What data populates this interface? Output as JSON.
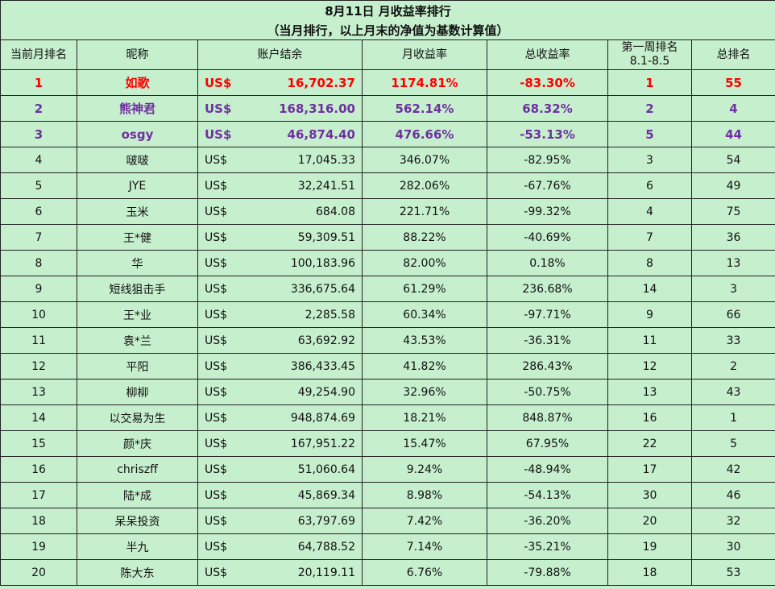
{
  "title_line1": "8月11日 月收益率排行",
  "title_line2": "（当月排行，以上月末的净值为基数计算值）",
  "headers": {
    "rank": "当前月排名",
    "nick": "昵称",
    "balance": "账户结余",
    "monthly": "月收益率",
    "total": "总收益率",
    "week1_line1": "第一周排名",
    "week1_line2": "8.1-8.5",
    "overall": "总排名"
  },
  "colors": {
    "background": "#c6efce",
    "rank1": "#ff0000",
    "rank2_3": "#7030a0",
    "border": "#222222"
  },
  "rows": [
    {
      "rank": "1",
      "nick": "如歌",
      "cur": "US$",
      "balance": "16,702.37",
      "monthly": "1174.81%",
      "total": "-83.30%",
      "week1": "1",
      "overall": "55"
    },
    {
      "rank": "2",
      "nick": "熊神君",
      "cur": "US$",
      "balance": "168,316.00",
      "monthly": "562.14%",
      "total": "68.32%",
      "week1": "2",
      "overall": "4"
    },
    {
      "rank": "3",
      "nick": "osgy",
      "cur": "US$",
      "balance": "46,874.40",
      "monthly": "476.66%",
      "total": "-53.13%",
      "week1": "5",
      "overall": "44"
    },
    {
      "rank": "4",
      "nick": "啵啵",
      "cur": "US$",
      "balance": "17,045.33",
      "monthly": "346.07%",
      "total": "-82.95%",
      "week1": "3",
      "overall": "54"
    },
    {
      "rank": "5",
      "nick": "JYE",
      "cur": "US$",
      "balance": "32,241.51",
      "monthly": "282.06%",
      "total": "-67.76%",
      "week1": "6",
      "overall": "49"
    },
    {
      "rank": "6",
      "nick": "玉米",
      "cur": "US$",
      "balance": "684.08",
      "monthly": "221.71%",
      "total": "-99.32%",
      "week1": "4",
      "overall": "75"
    },
    {
      "rank": "7",
      "nick": "王*健",
      "cur": "US$",
      "balance": "59,309.51",
      "monthly": "88.22%",
      "total": "-40.69%",
      "week1": "7",
      "overall": "36"
    },
    {
      "rank": "8",
      "nick": "华",
      "cur": "US$",
      "balance": "100,183.96",
      "monthly": "82.00%",
      "total": "0.18%",
      "week1": "8",
      "overall": "13"
    },
    {
      "rank": "9",
      "nick": "短线狙击手",
      "cur": "US$",
      "balance": "336,675.64",
      "monthly": "61.29%",
      "total": "236.68%",
      "week1": "14",
      "overall": "3"
    },
    {
      "rank": "10",
      "nick": "王*业",
      "cur": "US$",
      "balance": "2,285.58",
      "monthly": "60.34%",
      "total": "-97.71%",
      "week1": "9",
      "overall": "66"
    },
    {
      "rank": "11",
      "nick": "袁*兰",
      "cur": "US$",
      "balance": "63,692.92",
      "monthly": "43.53%",
      "total": "-36.31%",
      "week1": "11",
      "overall": "33"
    },
    {
      "rank": "12",
      "nick": "平阳",
      "cur": "US$",
      "balance": "386,433.45",
      "monthly": "41.82%",
      "total": "286.43%",
      "week1": "12",
      "overall": "2"
    },
    {
      "rank": "13",
      "nick": "柳柳",
      "cur": "US$",
      "balance": "49,254.90",
      "monthly": "32.96%",
      "total": "-50.75%",
      "week1": "13",
      "overall": "43"
    },
    {
      "rank": "14",
      "nick": "以交易为生",
      "cur": "US$",
      "balance": "948,874.69",
      "monthly": "18.21%",
      "total": "848.87%",
      "week1": "16",
      "overall": "1"
    },
    {
      "rank": "15",
      "nick": "颜*庆",
      "cur": "US$",
      "balance": "167,951.22",
      "monthly": "15.47%",
      "total": "67.95%",
      "week1": "22",
      "overall": "5"
    },
    {
      "rank": "16",
      "nick": "chriszff",
      "cur": "US$",
      "balance": "51,060.64",
      "monthly": "9.24%",
      "total": "-48.94%",
      "week1": "17",
      "overall": "42"
    },
    {
      "rank": "17",
      "nick": "陆*成",
      "cur": "US$",
      "balance": "45,869.34",
      "monthly": "8.98%",
      "total": "-54.13%",
      "week1": "30",
      "overall": "46"
    },
    {
      "rank": "18",
      "nick": "呆呆投资",
      "cur": "US$",
      "balance": "63,797.69",
      "monthly": "7.42%",
      "total": "-36.20%",
      "week1": "20",
      "overall": "32"
    },
    {
      "rank": "19",
      "nick": "半九",
      "cur": "US$",
      "balance": "64,788.52",
      "monthly": "7.14%",
      "total": "-35.21%",
      "week1": "19",
      "overall": "30"
    },
    {
      "rank": "20",
      "nick": "陈大东",
      "cur": "US$",
      "balance": "20,119.11",
      "monthly": "6.76%",
      "total": "-79.88%",
      "week1": "18",
      "overall": "53"
    }
  ]
}
